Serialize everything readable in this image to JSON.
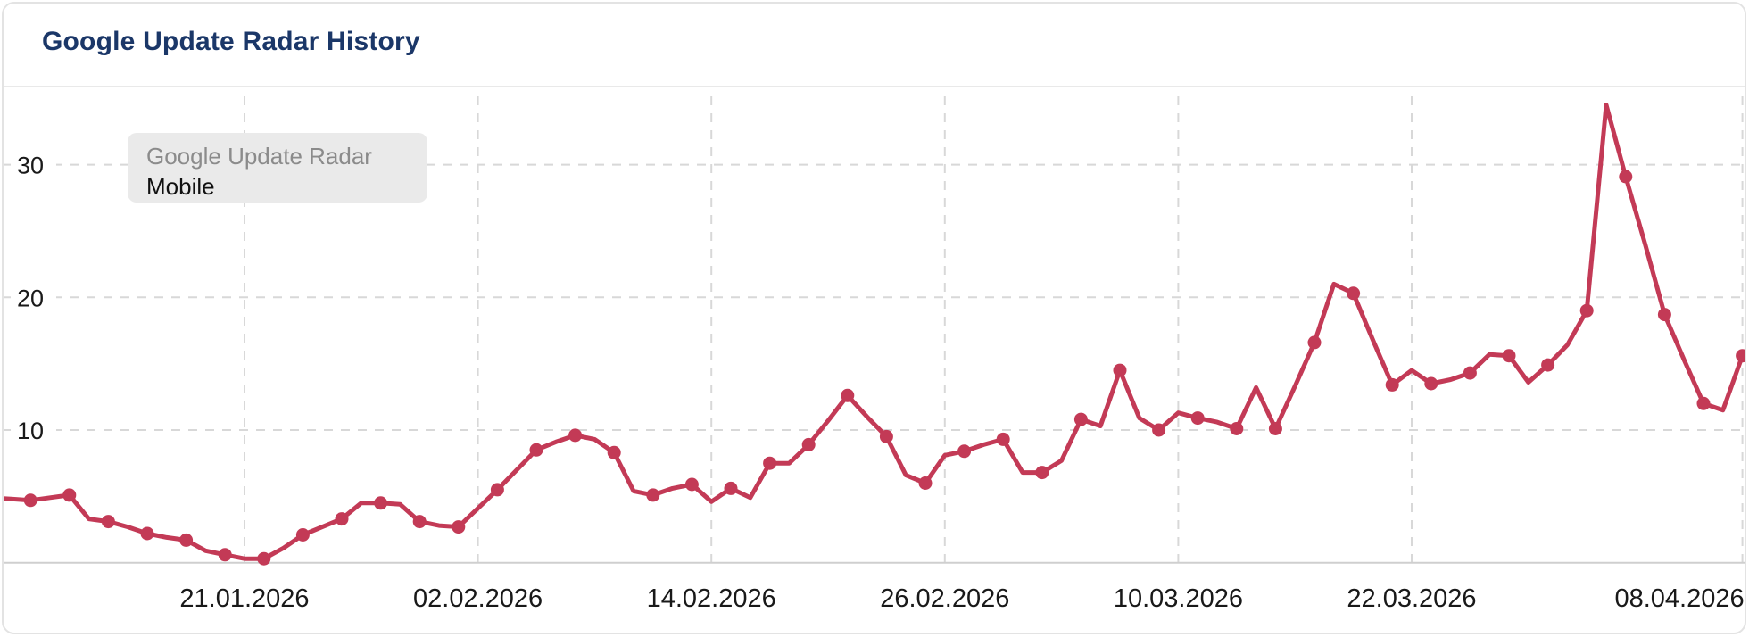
{
  "card": {
    "title": "Google Update Radar History"
  },
  "tooltip": {
    "series_name": "Google Update Radar",
    "device_label": "Mobile"
  },
  "colors": {
    "title_text": "#1b3768",
    "line": "#c33a56",
    "marker": "#c33a56",
    "grid": "#d8d8d8",
    "axis_line": "#cfcfcf",
    "top_divider": "#e9e9e9",
    "tick_text": "#191919",
    "tooltip_bg": "#eaeaea",
    "tooltip_series_text": "#8b8b8b",
    "tooltip_device_text": "#111111",
    "card_border": "#e3e3e3",
    "background": "#ffffff"
  },
  "chart_data": {
    "type": "line",
    "title": "Google Update Radar History",
    "series_name": "Google Update Radar",
    "device": "Mobile",
    "grid": "dashed",
    "legend_position": "none",
    "xlabel": "",
    "ylabel": "",
    "ylim": [
      0,
      36
    ],
    "y_axis": {
      "ticks": [
        10,
        20,
        30
      ]
    },
    "x_axis": {
      "labels": [
        {
          "index": 13,
          "label": "21.01.2026"
        },
        {
          "index": 25,
          "label": "02.02.2026"
        },
        {
          "index": 37,
          "label": "14.02.2026"
        },
        {
          "index": 49,
          "label": "26.02.2026"
        },
        {
          "index": 61,
          "label": "10.03.2026"
        },
        {
          "index": 73,
          "label": "22.03.2026"
        },
        {
          "index": 90,
          "label": "08.04.2026",
          "anchor": "end"
        }
      ]
    },
    "marker_note": "markers drawn on every second daily point",
    "points": [
      [
        "08.01.2026",
        4.9,
        0
      ],
      [
        "09.01.2026",
        4.8,
        0
      ],
      [
        "10.01.2026",
        4.7,
        1
      ],
      [
        "11.01.2026",
        4.9,
        0
      ],
      [
        "12.01.2026",
        5.1,
        1
      ],
      [
        "13.01.2026",
        3.3,
        0
      ],
      [
        "14.01.2026",
        3.1,
        1
      ],
      [
        "15.01.2026",
        2.7,
        0
      ],
      [
        "16.01.2026",
        2.2,
        1
      ],
      [
        "17.01.2026",
        1.9,
        0
      ],
      [
        "18.01.2026",
        1.7,
        1
      ],
      [
        "19.01.2026",
        0.9,
        0
      ],
      [
        "20.01.2026",
        0.6,
        1
      ],
      [
        "21.01.2026",
        0.3,
        0
      ],
      [
        "22.01.2026",
        0.3,
        1
      ],
      [
        "23.01.2026",
        1.1,
        0
      ],
      [
        "24.01.2026",
        2.1,
        1
      ],
      [
        "25.01.2026",
        2.7,
        0
      ],
      [
        "26.01.2026",
        3.3,
        1
      ],
      [
        "27.01.2026",
        4.5,
        0
      ],
      [
        "28.01.2026",
        4.5,
        1
      ],
      [
        "29.01.2026",
        4.4,
        0
      ],
      [
        "30.01.2026",
        3.1,
        1
      ],
      [
        "31.01.2026",
        2.8,
        0
      ],
      [
        "01.02.2026",
        2.7,
        1
      ],
      [
        "02.02.2026",
        4.1,
        0
      ],
      [
        "03.02.2026",
        5.5,
        1
      ],
      [
        "04.02.2026",
        7.0,
        0
      ],
      [
        "05.02.2026",
        8.5,
        1
      ],
      [
        "06.02.2026",
        9.1,
        0
      ],
      [
        "07.02.2026",
        9.6,
        1
      ],
      [
        "08.02.2026",
        9.3,
        0
      ],
      [
        "09.02.2026",
        8.3,
        1
      ],
      [
        "10.02.2026",
        5.4,
        0
      ],
      [
        "11.02.2026",
        5.1,
        1
      ],
      [
        "12.02.2026",
        5.6,
        0
      ],
      [
        "13.02.2026",
        5.9,
        1
      ],
      [
        "14.02.2026",
        4.6,
        0
      ],
      [
        "15.02.2026",
        5.6,
        1
      ],
      [
        "16.02.2026",
        4.9,
        0
      ],
      [
        "17.02.2026",
        7.5,
        1
      ],
      [
        "18.02.2026",
        7.5,
        0
      ],
      [
        "19.02.2026",
        8.9,
        1
      ],
      [
        "20.02.2026",
        10.7,
        0
      ],
      [
        "21.02.2026",
        12.6,
        1
      ],
      [
        "22.02.2026",
        11.0,
        0
      ],
      [
        "23.02.2026",
        9.5,
        1
      ],
      [
        "24.02.2026",
        6.6,
        0
      ],
      [
        "25.02.2026",
        6.0,
        1
      ],
      [
        "26.02.2026",
        8.1,
        0
      ],
      [
        "27.02.2026",
        8.4,
        1
      ],
      [
        "28.02.2026",
        8.9,
        0
      ],
      [
        "01.03.2026",
        9.3,
        1
      ],
      [
        "02.03.2026",
        6.8,
        0
      ],
      [
        "03.03.2026",
        6.8,
        1
      ],
      [
        "04.03.2026",
        7.7,
        0
      ],
      [
        "05.03.2026",
        10.8,
        1
      ],
      [
        "06.03.2026",
        10.3,
        0
      ],
      [
        "07.03.2026",
        14.5,
        1
      ],
      [
        "08.03.2026",
        10.9,
        0
      ],
      [
        "09.03.2026",
        10.0,
        1
      ],
      [
        "10.03.2026",
        11.3,
        0
      ],
      [
        "11.03.2026",
        10.9,
        1
      ],
      [
        "12.03.2026",
        10.6,
        0
      ],
      [
        "13.03.2026",
        10.1,
        1
      ],
      [
        "14.03.2026",
        13.2,
        0
      ],
      [
        "15.03.2026",
        10.1,
        1
      ],
      [
        "16.03.2026",
        13.3,
        0
      ],
      [
        "17.03.2026",
        16.6,
        1
      ],
      [
        "18.03.2026",
        21.0,
        0
      ],
      [
        "19.03.2026",
        20.3,
        1
      ],
      [
        "20.03.2026",
        16.8,
        0
      ],
      [
        "21.03.2026",
        13.4,
        1
      ],
      [
        "22.03.2026",
        14.5,
        0
      ],
      [
        "23.03.2026",
        13.5,
        1
      ],
      [
        "24.03.2026",
        13.8,
        0
      ],
      [
        "25.03.2026",
        14.3,
        1
      ],
      [
        "26.03.2026",
        15.7,
        0
      ],
      [
        "27.03.2026",
        15.6,
        1
      ],
      [
        "28.03.2026",
        13.6,
        0
      ],
      [
        "29.03.2026",
        14.9,
        1
      ],
      [
        "30.03.2026",
        16.4,
        0
      ],
      [
        "31.03.2026",
        19.0,
        1
      ],
      [
        "01.04.2026",
        34.5,
        0
      ],
      [
        "02.04.2026",
        29.1,
        1
      ],
      [
        "03.04.2026",
        24.0,
        0
      ],
      [
        "04.04.2026",
        18.7,
        1
      ],
      [
        "05.04.2026",
        15.3,
        0
      ],
      [
        "06.04.2026",
        12.0,
        1
      ],
      [
        "07.04.2026",
        11.5,
        0
      ],
      [
        "08.04.2026",
        15.6,
        1
      ]
    ]
  }
}
